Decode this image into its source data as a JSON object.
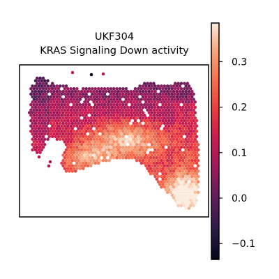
{
  "chart_data": {
    "type": "heatmap",
    "title_lines": [
      "UKF304",
      "KRAS Signaling Down activity"
    ],
    "xlabel": "",
    "ylabel": "",
    "colormap": "rocket",
    "colorbar": {
      "range": [
        -0.135,
        0.385
      ],
      "ticks": [
        -0.1,
        0.0,
        0.1,
        0.2,
        0.3
      ],
      "tick_labels": [
        "−0.1",
        "0.0",
        "0.1",
        "0.2",
        "0.3"
      ]
    },
    "spatial_trend": {
      "description_values": "left/top region ~0.05-0.15, lower-central band ~0.25-0.33, bottom-right tail ~0.3-0.38",
      "low_value": 0.05,
      "mid_value": 0.15,
      "high_value": 0.33,
      "outlier_min": -0.12
    },
    "grid": false
  }
}
